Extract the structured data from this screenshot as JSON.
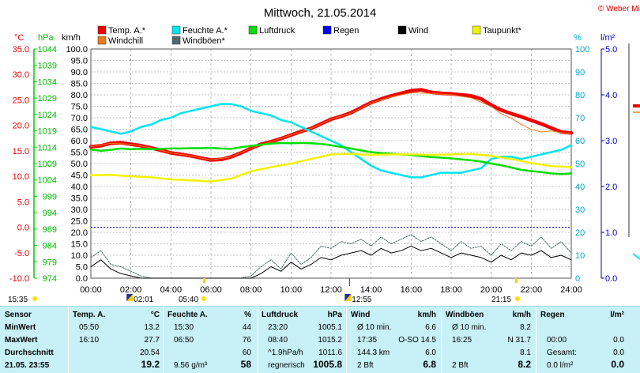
{
  "title": "Mittwoch, 21.05.2014",
  "credit": "© Weber Mike",
  "colors": {
    "temp": "#ee0000",
    "windchill": "#e87a1a",
    "humidity": "#00e5ee",
    "pressure": "#00dd00",
    "rain": "#0000ee",
    "wind": "#000000",
    "dewpoint": "#f2f200",
    "gust": "#4f6a6a"
  },
  "legend": [
    {
      "label": "Temp. A.*",
      "color": "#ee0000"
    },
    {
      "label": "Feuchte A.*",
      "color": "#00e5ee"
    },
    {
      "label": "Luftdruck",
      "color": "#00dd00"
    },
    {
      "label": "Regen",
      "color": "#0000ee"
    },
    {
      "label": "Wind",
      "color": "#000000"
    },
    {
      "label": "Taupunkt*",
      "color": "#f2f200"
    },
    {
      "label": "Windchill",
      "color": "#e87a1a"
    },
    {
      "label": "Windböen*",
      "color": "#4f6a6a"
    }
  ],
  "axes": {
    "temp_unit": "°C",
    "pressure_unit": "hPa",
    "wind_unit": "km/h",
    "humidity_unit": "%",
    "rain_unit": "l/m²",
    "temp_ticks": [
      "35.0",
      "30.0",
      "25.0",
      "20.0",
      "15.0",
      "10.0",
      "5.0",
      "0.0",
      "-5.0",
      "-10.0"
    ],
    "pressure_ticks": [
      "1044",
      "1039",
      "1034",
      "1029",
      "1024",
      "1019",
      "1014",
      "1009",
      "1004",
      "999",
      "994",
      "989",
      "984",
      "979",
      "974"
    ],
    "wind_ticks": [
      "100.0",
      "95.0",
      "90.0",
      "85.0",
      "80.0",
      "75.0",
      "70.0",
      "65.0",
      "60.0",
      "55.0",
      "50.0",
      "45.0",
      "40.0",
      "35.0",
      "30.0",
      "25.0",
      "20.0",
      "15.0",
      "10.0",
      "5.0",
      "0.0"
    ],
    "humidity_ticks": [
      "100",
      "90",
      "80",
      "70",
      "60",
      "50",
      "40",
      "30",
      "20",
      "10",
      "0"
    ],
    "rain_ticks": [
      "5.0",
      "4.0",
      "3.0",
      "2.0",
      "1.0",
      "0.0"
    ],
    "time_ticks": [
      "00:00",
      "02:00",
      "04:00",
      "06:00",
      "08:00",
      "10:00",
      "12:00",
      "14:00",
      "16:00",
      "18:00",
      "20:00",
      "22:00",
      "24:00"
    ]
  },
  "sun_moon": {
    "sunrise_label": "05:40",
    "sunset_label": "21:15",
    "moonrise_label": "02:01",
    "moonset_label": "12:55",
    "left_label": "15:35"
  },
  "chart_data": {
    "type": "line",
    "x_label": "",
    "xlim": [
      0,
      24
    ],
    "series": [
      {
        "name": "Temp. A.*",
        "axis": "temp",
        "color": "#ee0000",
        "x": [
          0,
          0.5,
          1,
          1.5,
          2,
          2.5,
          3,
          3.5,
          4,
          4.5,
          5,
          5.5,
          6,
          6.5,
          7,
          7.5,
          8,
          8.5,
          9,
          9.5,
          10,
          10.5,
          11,
          11.5,
          12,
          12.5,
          13,
          13.5,
          14,
          14.5,
          15,
          15.5,
          16,
          16.5,
          17,
          17.5,
          18,
          18.5,
          19,
          19.5,
          20,
          20.5,
          21,
          21.5,
          22,
          22.5,
          23,
          23.5,
          24
        ],
        "y": [
          15.8,
          16.0,
          16.5,
          16.6,
          16.3,
          16.0,
          15.6,
          15.1,
          14.6,
          14.3,
          14.0,
          13.6,
          13.2,
          13.3,
          13.8,
          14.6,
          15.5,
          16.3,
          16.8,
          17.4,
          18.1,
          18.8,
          19.4,
          20.3,
          21.2,
          21.8,
          22.5,
          23.5,
          24.5,
          25.2,
          25.8,
          26.3,
          26.8,
          27.0,
          26.5,
          26.3,
          26.2,
          26.0,
          25.8,
          25.2,
          24.0,
          23.0,
          22.3,
          21.7,
          21.0,
          20.3,
          19.5,
          18.7,
          18.5
        ]
      },
      {
        "name": "Windchill",
        "axis": "temp",
        "color": "#e87a1a",
        "x": [
          0,
          1,
          2,
          3,
          4,
          5,
          6,
          7,
          8,
          9,
          10,
          11,
          12,
          13,
          14,
          15,
          16,
          17,
          18,
          19,
          20,
          20.5,
          21,
          21.5,
          22,
          22.5,
          23,
          23.5,
          24
        ],
        "y": [
          15.8,
          16.5,
          16.3,
          15.6,
          14.6,
          14.0,
          13.2,
          13.8,
          15.5,
          16.8,
          18.1,
          19.4,
          21.2,
          22.4,
          24.4,
          25.6,
          26.4,
          26.3,
          26.0,
          25.4,
          23.7,
          22.3,
          21.4,
          20.2,
          19.2,
          18.7,
          18.9,
          18.6,
          18.4
        ]
      },
      {
        "name": "Feuchte A.*",
        "axis": "humidity",
        "color": "#00e5ee",
        "x": [
          0,
          0.5,
          1,
          1.5,
          2,
          2.5,
          3,
          3.5,
          4,
          4.5,
          5,
          5.5,
          6,
          6.5,
          7,
          7.5,
          8,
          8.5,
          9,
          9.5,
          10,
          10.5,
          11,
          11.5,
          12,
          12.5,
          13,
          13.5,
          14,
          14.5,
          15,
          15.5,
          16,
          16.5,
          17,
          17.5,
          18,
          18.5,
          19,
          19.5,
          20,
          20.5,
          21,
          21.5,
          22,
          22.5,
          23,
          23.5,
          24
        ],
        "y": [
          66,
          65,
          64,
          63,
          64,
          66,
          67,
          69,
          70,
          72,
          73,
          74,
          75,
          76,
          76,
          75,
          73,
          72,
          71,
          69,
          68,
          66,
          64,
          62,
          60,
          58,
          55,
          52,
          49,
          47,
          46,
          45,
          44,
          44,
          45,
          46,
          46,
          46,
          47,
          48,
          52,
          53,
          53,
          52,
          53,
          54,
          55,
          56,
          58
        ]
      },
      {
        "name": "Luftdruck",
        "axis": "pressure",
        "color": "#00dd00",
        "x": [
          0,
          0.5,
          1,
          1.5,
          2,
          2.5,
          3,
          3.5,
          4,
          4.5,
          5,
          5.5,
          6,
          6.5,
          7,
          7.5,
          8,
          8.5,
          9,
          9.5,
          10,
          10.5,
          11,
          11.5,
          12,
          12.5,
          13,
          13.5,
          14,
          14.5,
          15,
          15.5,
          16,
          16.5,
          17,
          17.5,
          18,
          18.5,
          19,
          19.5,
          20,
          20.5,
          21,
          21.5,
          22,
          22.5,
          23,
          23.5,
          24
        ],
        "y": [
          1013.3,
          1012.9,
          1013.2,
          1013.6,
          1013.4,
          1013.5,
          1013.4,
          1013.5,
          1013.6,
          1013.6,
          1013.7,
          1013.7,
          1013.8,
          1013.6,
          1013.5,
          1014.0,
          1014.4,
          1014.8,
          1015.1,
          1015.3,
          1015.2,
          1015.3,
          1015.2,
          1015.0,
          1014.6,
          1014.1,
          1013.6,
          1013.0,
          1012.5,
          1012.2,
          1012.0,
          1011.8,
          1011.6,
          1011.3,
          1011.0,
          1010.8,
          1010.6,
          1010.3,
          1010.0,
          1009.6,
          1009.0,
          1008.5,
          1007.8,
          1007.1,
          1006.7,
          1006.4,
          1006.0,
          1005.8,
          1006.0
        ]
      },
      {
        "name": "Taupunkt*",
        "axis": "temp",
        "color": "#f2f200",
        "x": [
          0,
          1,
          2,
          3,
          4,
          5,
          6,
          7,
          8,
          9,
          10,
          11,
          12,
          13,
          14,
          15,
          16,
          17,
          18,
          19,
          20,
          21,
          22,
          23,
          24
        ],
        "y": [
          10.2,
          10.3,
          10.0,
          9.8,
          9.4,
          9.2,
          9.0,
          9.5,
          11.0,
          11.8,
          12.5,
          13.4,
          14.3,
          14.4,
          14.2,
          14.3,
          14.3,
          14.2,
          14.3,
          14.4,
          14.0,
          13.4,
          12.6,
          12.0,
          11.8
        ]
      },
      {
        "name": "Windböen*",
        "axis": "wind",
        "color": "#4f6a6a",
        "x": [
          0,
          0.5,
          1,
          1.5,
          2,
          2.5,
          3,
          3.5,
          4,
          4.5,
          5,
          5.5,
          6,
          6.5,
          7,
          7.5,
          8,
          8.5,
          9,
          9.5,
          10,
          10.5,
          11,
          11.5,
          12,
          12.5,
          13,
          13.5,
          14,
          14.5,
          15,
          15.5,
          16,
          16.5,
          17,
          17.5,
          18,
          18.5,
          19,
          19.5,
          20,
          20.5,
          21,
          21.5,
          22,
          22.5,
          23,
          23.5,
          24
        ],
        "y": [
          9,
          12,
          6,
          5,
          3,
          1,
          0,
          0,
          0,
          0,
          0,
          0,
          0,
          0,
          0,
          0,
          1,
          5,
          8,
          4,
          11,
          6,
          9,
          14,
          13,
          16,
          15,
          17,
          14,
          18,
          15,
          17,
          19,
          16,
          18,
          15,
          12,
          16,
          13,
          14,
          10,
          15,
          12,
          16,
          14,
          18,
          13,
          16,
          11
        ]
      },
      {
        "name": "Wind",
        "axis": "wind",
        "color": "#000000",
        "x": [
          0,
          0.5,
          1,
          1.5,
          2,
          2.5,
          3,
          3.5,
          4,
          4.5,
          5,
          5.5,
          6,
          6.5,
          7,
          7.5,
          8,
          8.5,
          9,
          9.5,
          10,
          10.5,
          11,
          11.5,
          12,
          12.5,
          13,
          13.5,
          14,
          14.5,
          15,
          15.5,
          16,
          16.5,
          17,
          17.5,
          18,
          18.5,
          19,
          19.5,
          20,
          20.5,
          21,
          21.5,
          22,
          22.5,
          23,
          23.5,
          24
        ],
        "y": [
          5,
          8,
          4,
          2,
          1,
          0,
          0,
          0,
          0,
          0,
          0,
          0,
          0,
          0,
          0,
          0,
          0,
          2,
          5,
          3,
          7,
          4,
          6,
          9,
          8,
          10,
          11,
          12,
          10,
          13,
          11,
          12,
          14,
          12,
          13,
          11,
          9,
          11,
          10,
          9,
          7,
          10,
          8,
          11,
          10,
          12,
          9,
          10,
          8
        ]
      }
    ],
    "zero_line_temp": 0.0
  },
  "stats": {
    "headers": {
      "sensor": "Sensor",
      "temp": "Temp. A.",
      "temp_unit": "°C",
      "hum": "Feuchte A.",
      "hum_unit": "%",
      "press": "Luftdruck",
      "press_unit": "hPa",
      "wind": "Wind",
      "wind_unit": "km/h",
      "gust": "Windböen",
      "gust_unit": "km/h",
      "rain": "Regen",
      "rain_unit": "l/m²"
    },
    "row_labels": [
      "MinWert",
      "MaxWert",
      "Durchschnitt",
      "21.05. 23:55"
    ],
    "temp": [
      [
        "05:50",
        "13.2"
      ],
      [
        "16:10",
        "27.7"
      ],
      [
        "",
        "20.54"
      ],
      [
        "",
        "19.2"
      ]
    ],
    "hum": [
      [
        "15:30",
        "44"
      ],
      [
        "06:50",
        "76"
      ],
      [
        "",
        "60"
      ],
      [
        "9.56 g/m³",
        "58"
      ]
    ],
    "press": [
      [
        "23:20",
        "1005.1"
      ],
      [
        "08:40",
        "1015.2"
      ],
      [
        "^1.9hPa/h",
        "1011.6"
      ],
      [
        "regnerisch",
        "1005.8"
      ]
    ],
    "wind": [
      [
        "Ø 10 min.",
        "6.6"
      ],
      [
        "17:35",
        "O-SO 14.5"
      ],
      [
        "144.3 km",
        "6.0"
      ],
      [
        "2 Bft",
        "6.8"
      ]
    ],
    "gust": [
      [
        "Ø 10 min.",
        "8.2"
      ],
      [
        "16:25",
        "N 31.7"
      ],
      [
        "",
        "8.1"
      ],
      [
        "2 Bft",
        "8.2"
      ]
    ],
    "rain": [
      [
        "",
        ""
      ],
      [
        "00:00",
        "0.0"
      ],
      [
        "Gesamt:",
        "0.0"
      ],
      [
        "0.0 l/m²",
        "0.0"
      ]
    ]
  }
}
